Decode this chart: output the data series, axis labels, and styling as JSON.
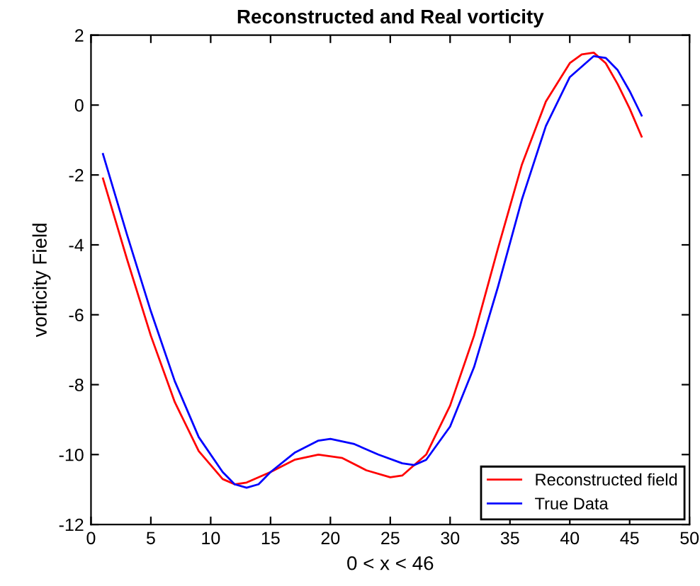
{
  "chart_data": {
    "type": "line",
    "title": "Reconstructed and Real vorticity",
    "xlabel": "0 < x < 46",
    "ylabel": "vorticity Field",
    "series": [
      {
        "name": "Reconstructed field",
        "color": "#ff0000",
        "x": [
          1,
          3,
          5,
          7,
          9,
          11,
          12,
          13,
          15,
          17,
          19,
          21,
          23,
          25,
          26,
          28,
          30,
          32,
          34,
          36,
          38,
          40,
          41,
          42,
          43,
          44,
          45,
          46
        ],
        "values": [
          -2.1,
          -4.4,
          -6.6,
          -8.5,
          -9.9,
          -10.7,
          -10.85,
          -10.8,
          -10.5,
          -10.15,
          -10.0,
          -10.1,
          -10.45,
          -10.65,
          -10.6,
          -10.0,
          -8.6,
          -6.6,
          -4.1,
          -1.7,
          0.1,
          1.2,
          1.45,
          1.5,
          1.2,
          0.6,
          -0.1,
          -0.9
        ]
      },
      {
        "name": "True Data",
        "color": "#0000ff",
        "x": [
          1,
          3,
          5,
          7,
          9,
          11,
          12,
          13,
          14,
          15,
          17,
          19,
          20,
          22,
          24,
          26,
          27,
          28,
          30,
          32,
          34,
          36,
          38,
          40,
          42,
          43,
          44,
          45,
          46
        ],
        "values": [
          -1.4,
          -3.7,
          -5.9,
          -7.9,
          -9.5,
          -10.5,
          -10.85,
          -10.95,
          -10.85,
          -10.5,
          -9.95,
          -9.6,
          -9.55,
          -9.7,
          -10.0,
          -10.25,
          -10.3,
          -10.15,
          -9.2,
          -7.5,
          -5.2,
          -2.7,
          -0.6,
          0.8,
          1.4,
          1.35,
          1.0,
          0.4,
          -0.3
        ]
      }
    ],
    "xlim": [
      0,
      50
    ],
    "xticks": [
      0,
      5,
      10,
      15,
      20,
      25,
      30,
      35,
      40,
      45,
      50
    ],
    "ylim": [
      -12,
      2
    ],
    "yticks": [
      -12,
      -10,
      -8,
      -6,
      -4,
      -2,
      0,
      2
    ],
    "legend": "bottom right",
    "grid": false
  }
}
